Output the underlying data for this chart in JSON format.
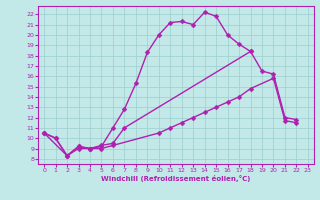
{
  "xlabel": "Windchill (Refroidissement éolien,°C)",
  "xlim": [
    -0.5,
    23.5
  ],
  "ylim": [
    7.5,
    22.8
  ],
  "xticks": [
    0,
    1,
    2,
    3,
    4,
    5,
    6,
    7,
    8,
    9,
    10,
    11,
    12,
    13,
    14,
    15,
    16,
    17,
    18,
    19,
    20,
    21,
    22,
    23
  ],
  "yticks": [
    8,
    9,
    10,
    11,
    12,
    13,
    14,
    15,
    16,
    17,
    18,
    19,
    20,
    21,
    22
  ],
  "bg_color": "#c2e8e8",
  "grid_color": "#9ecece",
  "line_color": "#b020b0",
  "line1_x": [
    0,
    1,
    2,
    3,
    4,
    5,
    6,
    7,
    8,
    9,
    10,
    11,
    12,
    13,
    14,
    15,
    16,
    17,
    18
  ],
  "line1_y": [
    10.5,
    10.0,
    8.3,
    9.2,
    9.0,
    9.2,
    11.0,
    12.8,
    15.3,
    18.3,
    20.0,
    21.2,
    21.3,
    21.0,
    22.2,
    21.8,
    20.0,
    19.1,
    18.4
  ],
  "line2_x": [
    0,
    1,
    2,
    3,
    4,
    5,
    6,
    7,
    18,
    19,
    20,
    21,
    22
  ],
  "line2_y": [
    10.5,
    10.0,
    8.3,
    9.2,
    9.0,
    9.3,
    9.5,
    11.0,
    18.4,
    16.5,
    16.2,
    12.0,
    11.8
  ],
  "line3_x": [
    0,
    2,
    3,
    4,
    5,
    6,
    10,
    11,
    12,
    13,
    14,
    15,
    16,
    17,
    18,
    20,
    21,
    22
  ],
  "line3_y": [
    10.5,
    8.3,
    9.0,
    9.0,
    9.0,
    9.3,
    10.5,
    11.0,
    11.5,
    12.0,
    12.5,
    13.0,
    13.5,
    14.0,
    14.8,
    15.8,
    11.7,
    11.5
  ],
  "marker": "D",
  "markersize": 2.5,
  "linewidth": 1.0
}
